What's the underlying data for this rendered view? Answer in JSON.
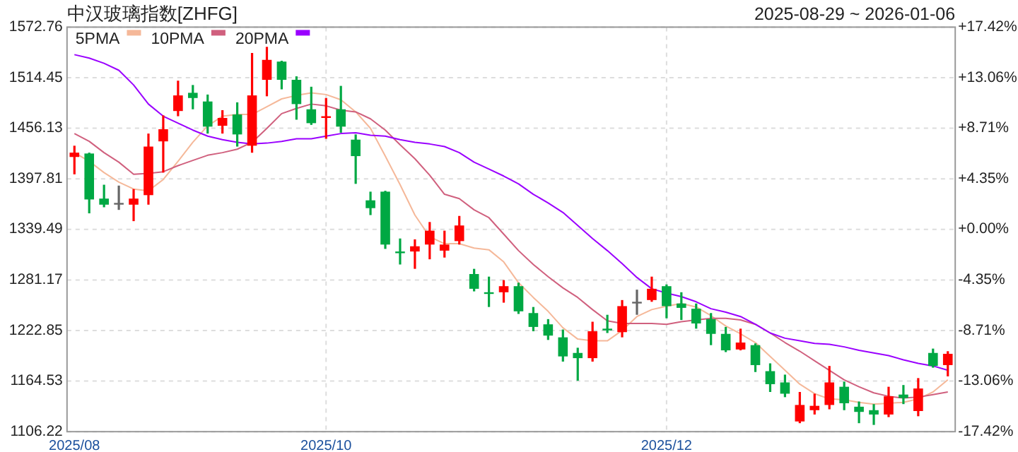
{
  "chart_data": {
    "type": "candlestick",
    "title": "中汉玻璃指数[ZHFG]",
    "subtitle": "2025-08-29 ~ 2026-01-06",
    "categories": [
      "2025/08",
      null,
      null,
      null,
      null,
      null,
      null,
      null,
      null,
      null,
      null,
      null,
      null,
      null,
      null,
      null,
      null,
      "2025/10",
      null,
      null,
      null,
      null,
      null,
      null,
      null,
      null,
      null,
      null,
      null,
      null,
      null,
      null,
      null,
      null,
      null,
      null,
      null,
      null,
      null,
      null,
      "2025/12",
      null,
      null,
      null,
      null,
      null,
      null,
      null,
      null,
      null,
      null,
      null,
      null,
      null,
      null,
      null,
      null,
      null,
      null,
      null
    ],
    "ohlc": [
      [
        1423,
        1436,
        1403,
        1428
      ],
      [
        1427,
        1428,
        1358,
        1374
      ],
      [
        1375,
        1391,
        1365,
        1368
      ],
      [
        1370,
        1390,
        1362,
        1370
      ],
      [
        1368,
        1386,
        1349,
        1375
      ],
      [
        1379,
        1450,
        1368,
        1435
      ],
      [
        1441,
        1471,
        1405,
        1455
      ],
      [
        1476,
        1511,
        1470,
        1494
      ],
      [
        1497,
        1506,
        1478,
        1491
      ],
      [
        1487,
        1495,
        1450,
        1458
      ],
      [
        1459,
        1477,
        1450,
        1468
      ],
      [
        1472,
        1486,
        1435,
        1449
      ],
      [
        1436,
        1543,
        1428,
        1494
      ],
      [
        1512,
        1550,
        1493,
        1535
      ],
      [
        1533,
        1534,
        1501,
        1512
      ],
      [
        1512,
        1516,
        1466,
        1484
      ],
      [
        1478,
        1504,
        1460,
        1462
      ],
      [
        1469,
        1491,
        1444,
        1470
      ],
      [
        1478,
        1505,
        1451,
        1458
      ],
      [
        1443,
        1449,
        1392,
        1424
      ],
      [
        1373,
        1383,
        1356,
        1364
      ],
      [
        1383,
        1384,
        1317,
        1322
      ],
      [
        1314,
        1329,
        1299,
        1313
      ],
      [
        1314,
        1328,
        1294,
        1320
      ],
      [
        1322,
        1348,
        1305,
        1338
      ],
      [
        1315,
        1338,
        1307,
        1322
      ],
      [
        1326,
        1355,
        1322,
        1344
      ],
      [
        1288,
        1294,
        1268,
        1271
      ],
      [
        1267,
        1285,
        1250,
        1266
      ],
      [
        1267,
        1281,
        1255,
        1274
      ],
      [
        1274,
        1278,
        1242,
        1245
      ],
      [
        1243,
        1250,
        1222,
        1227
      ],
      [
        1230,
        1236,
        1212,
        1217
      ],
      [
        1215,
        1224,
        1187,
        1193
      ],
      [
        1197,
        1203,
        1165,
        1191
      ],
      [
        1191,
        1233,
        1187,
        1222
      ],
      [
        1225,
        1241,
        1220,
        1224
      ],
      [
        1221,
        1258,
        1215,
        1251
      ],
      [
        1256,
        1270,
        1241,
        1256
      ],
      [
        1258,
        1285,
        1256,
        1271
      ],
      [
        1274,
        1276,
        1237,
        1251
      ],
      [
        1254,
        1267,
        1235,
        1249
      ],
      [
        1248,
        1254,
        1225,
        1231
      ],
      [
        1236,
        1243,
        1206,
        1219
      ],
      [
        1219,
        1227,
        1198,
        1200
      ],
      [
        1201,
        1225,
        1200,
        1209
      ],
      [
        1206,
        1208,
        1175,
        1183
      ],
      [
        1176,
        1185,
        1152,
        1161
      ],
      [
        1163,
        1172,
        1146,
        1150
      ],
      [
        1118,
        1152,
        1116,
        1137
      ],
      [
        1131,
        1150,
        1126,
        1136
      ],
      [
        1137,
        1182,
        1132,
        1163
      ],
      [
        1158,
        1164,
        1131,
        1139
      ],
      [
        1135,
        1141,
        1116,
        1129
      ],
      [
        1131,
        1138,
        1114,
        1126
      ],
      [
        1126,
        1158,
        1123,
        1147
      ],
      [
        1149,
        1160,
        1138,
        1145
      ],
      [
        1130,
        1168,
        1124,
        1156
      ],
      [
        1197,
        1202,
        1180,
        1182
      ],
      [
        1183,
        1199,
        1170,
        1196
      ]
    ],
    "colors": [
      "#ff0000",
      "#00a843",
      "#00a843",
      "#666666",
      "#ff0000",
      "#ff0000",
      "#ff0000",
      "#ff0000",
      "#00a843",
      "#00a843",
      "#ff0000",
      "#00a843",
      "#ff0000",
      "#ff0000",
      "#00a843",
      "#00a843",
      "#00a843",
      "#ff0000",
      "#00a843",
      "#00a843",
      "#00a843",
      "#00a843",
      "#00a843",
      "#ff0000",
      "#ff0000",
      "#ff0000",
      "#ff0000",
      "#00a843",
      "#00a843",
      "#ff0000",
      "#00a843",
      "#00a843",
      "#00a843",
      "#00a843",
      "#00a843",
      "#ff0000",
      "#00a843",
      "#ff0000",
      "#666666",
      "#ff0000",
      "#00a843",
      "#00a843",
      "#00a843",
      "#00a843",
      "#00a843",
      "#ff0000",
      "#00a843",
      "#00a843",
      "#00a843",
      "#ff0000",
      "#ff0000",
      "#ff0000",
      "#00a843",
      "#00a843",
      "#00a843",
      "#ff0000",
      "#00a843",
      "#ff0000",
      "#00a843",
      "#ff0000"
    ],
    "series": [
      {
        "name": "5PMA",
        "type": "line",
        "color": "#f5b899",
        "values": [
          1428,
          1418,
          1405,
          1394,
          1386,
          1384,
          1397,
          1418,
          1440,
          1459,
          1470,
          1472,
          1472,
          1481,
          1490,
          1494,
          1497,
          1495,
          1489,
          1475,
          1456,
          1424,
          1391,
          1356,
          1331,
          1323,
          1323,
          1318,
          1316,
          1302,
          1278,
          1261,
          1245,
          1226,
          1213,
          1211,
          1211,
          1223,
          1239,
          1247,
          1251,
          1254,
          1250,
          1240,
          1228,
          1219,
          1209,
          1193,
          1177,
          1161,
          1150,
          1144,
          1143,
          1140,
          1138,
          1139,
          1140,
          1144,
          1152,
          1166
        ]
      },
      {
        "name": "10PMA",
        "type": "line",
        "color": "#d0607e",
        "values": [
          1450,
          1441,
          1428,
          1417,
          1403,
          1404,
          1406,
          1413,
          1419,
          1425,
          1428,
          1432,
          1440,
          1456,
          1473,
          1479,
          1484,
          1482,
          1477,
          1475,
          1467,
          1454,
          1437,
          1421,
          1402,
          1380,
          1375,
          1362,
          1353,
          1334,
          1315,
          1299,
          1285,
          1272,
          1261,
          1247,
          1234,
          1231,
          1231,
          1231,
          1230,
          1233,
          1235,
          1237,
          1237,
          1235,
          1230,
          1220,
          1209,
          1199,
          1188,
          1177,
          1166,
          1158,
          1151,
          1147,
          1145,
          1146,
          1149,
          1152
        ]
      },
      {
        "name": "20PMA",
        "type": "line",
        "color": "#9a00ff",
        "values": [
          1541,
          1537,
          1531,
          1523,
          1506,
          1484,
          1470,
          1462,
          1454,
          1447,
          1443,
          1440,
          1438,
          1439,
          1441,
          1444,
          1444,
          1447,
          1450,
          1451,
          1448,
          1447,
          1443,
          1440,
          1438,
          1435,
          1428,
          1417,
          1409,
          1401,
          1392,
          1380,
          1370,
          1359,
          1344,
          1329,
          1315,
          1300,
          1284,
          1271,
          1266,
          1262,
          1256,
          1248,
          1244,
          1239,
          1230,
          1220,
          1214,
          1211,
          1208,
          1207,
          1204,
          1200,
          1197,
          1194,
          1189,
          1185,
          1182,
          1177
        ]
      }
    ],
    "ylim": [
      1106.22,
      1572.76
    ],
    "yticks": [
      1106.22,
      1164.53,
      1222.85,
      1281.17,
      1339.49,
      1397.81,
      1456.13,
      1514.45,
      1572.76
    ],
    "y2lim": [
      -17.42,
      17.42
    ],
    "y2ticks": [
      {
        "value": -17.42,
        "label": "-17.42%"
      },
      {
        "value": -13.06,
        "label": "-13.06%"
      },
      {
        "value": -8.71,
        "label": "-8.71%"
      },
      {
        "value": -4.35,
        "label": "-4.35%"
      },
      {
        "value": 0,
        "label": "+0.00%"
      },
      {
        "value": 4.35,
        "label": "+4.35%"
      },
      {
        "value": 8.71,
        "label": "+8.71%"
      },
      {
        "value": 13.06,
        "label": "+13.06%"
      },
      {
        "value": 17.42,
        "label": "+17.42%"
      }
    ],
    "grid": true,
    "legend": "top left"
  }
}
